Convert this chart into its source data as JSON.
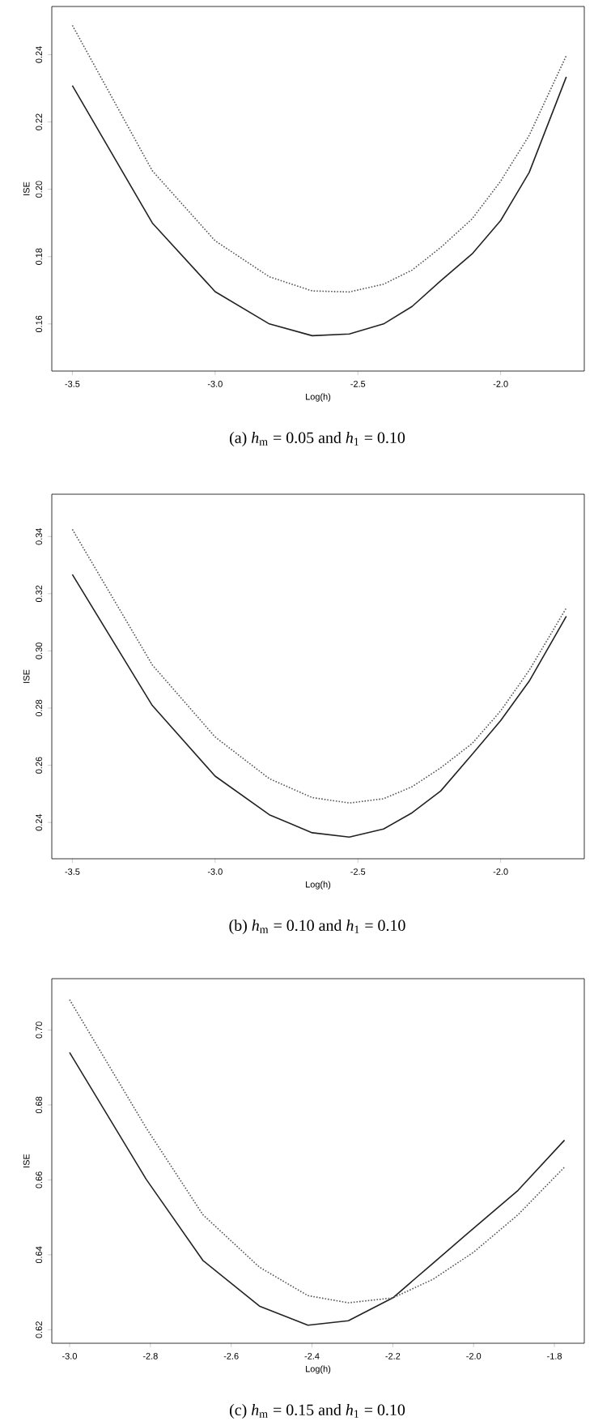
{
  "chart_data": [
    {
      "type": "line",
      "xlabel": "Log(h)",
      "ylabel": "ISE",
      "annotations": [
        "(a) *h*$_{m}$ = 0.05 and *h*$_{1}$ = 0.10"
      ],
      "grid": false,
      "xlim": [
        -3.572,
        -1.707
      ],
      "ylim": [
        0.146,
        0.2543
      ],
      "xticks": [
        {
          "value": -3.5,
          "label": "-3.5"
        },
        {
          "value": -3.0,
          "label": "-3.0"
        },
        {
          "value": -2.5,
          "label": "-2.5"
        },
        {
          "value": -2.0,
          "label": "-2.0"
        }
      ],
      "yticks": [
        {
          "value": 0.16,
          "label": "0.16"
        },
        {
          "value": 0.18,
          "label": "0.18"
        },
        {
          "value": 0.2,
          "label": "0.20"
        },
        {
          "value": 0.22,
          "label": "0.22"
        },
        {
          "value": 0.24,
          "label": "0.24"
        }
      ],
      "x": [
        -3.5,
        -3.22,
        -3.0,
        -2.81,
        -2.66,
        -2.53,
        -2.41,
        -2.31,
        -2.21,
        -2.1,
        -2.0,
        -1.9,
        -1.77
      ],
      "series": [
        {
          "color": "#222222",
          "line_style": "solid",
          "values": [
            0.2308,
            0.19,
            0.1696,
            0.16,
            0.1565,
            0.157,
            0.16,
            0.1652,
            0.1728,
            0.1808,
            0.1907,
            0.205,
            0.2334
          ]
        },
        {
          "color": "#555555",
          "line_style": "dotted",
          "values": [
            0.2487,
            0.2055,
            0.1847,
            0.174,
            0.1698,
            0.1695,
            0.1718,
            0.176,
            0.1827,
            0.1912,
            0.2024,
            0.216,
            0.2397
          ]
        }
      ]
    },
    {
      "type": "line",
      "xlabel": "Log(h)",
      "ylabel": "ISE",
      "annotations": [
        "(b) *h*$_{m}$ = 0.10 and *h*$_{1}$ = 0.10"
      ],
      "grid": false,
      "xlim": [
        -3.572,
        -1.707
      ],
      "ylim": [
        0.2273,
        0.3548
      ],
      "xticks": [
        {
          "value": -3.5,
          "label": "-3.5"
        },
        {
          "value": -3.0,
          "label": "-3.0"
        },
        {
          "value": -2.5,
          "label": "-2.5"
        },
        {
          "value": -2.0,
          "label": "-2.0"
        }
      ],
      "yticks": [
        {
          "value": 0.24,
          "label": "0.24"
        },
        {
          "value": 0.26,
          "label": "0.26"
        },
        {
          "value": 0.28,
          "label": "0.28"
        },
        {
          "value": 0.3,
          "label": "0.30"
        },
        {
          "value": 0.32,
          "label": "0.32"
        },
        {
          "value": 0.34,
          "label": "0.34"
        }
      ],
      "x": [
        -3.5,
        -3.22,
        -3.0,
        -2.81,
        -2.66,
        -2.53,
        -2.41,
        -2.31,
        -2.21,
        -2.1,
        -2.0,
        -1.9,
        -1.77
      ],
      "series": [
        {
          "color": "#222222",
          "line_style": "solid",
          "values": [
            0.3267,
            0.2809,
            0.2562,
            0.2427,
            0.2364,
            0.2349,
            0.2377,
            0.2434,
            0.251,
            0.2638,
            0.2756,
            0.2894,
            0.3121
          ]
        },
        {
          "color": "#555555",
          "line_style": "dotted",
          "values": [
            0.3425,
            0.2951,
            0.2699,
            0.2553,
            0.2487,
            0.2468,
            0.2483,
            0.2525,
            0.2591,
            0.2676,
            0.279,
            0.2932,
            0.315
          ]
        }
      ]
    },
    {
      "type": "line",
      "xlabel": "Log(h)",
      "ylabel": "ISE",
      "annotations": [
        "(c) *h*$_{m}$ = 0.15 and *h*$_{1}$ = 0.10"
      ],
      "grid": false,
      "xlim": [
        -3.044,
        -1.726
      ],
      "ylim": [
        0.6164,
        0.7137
      ],
      "xticks": [
        {
          "value": -3.0,
          "label": "-3.0"
        },
        {
          "value": -2.8,
          "label": "-2.8"
        },
        {
          "value": -2.6,
          "label": "-2.6"
        },
        {
          "value": -2.4,
          "label": "-2.4"
        },
        {
          "value": -2.2,
          "label": "-2.2"
        },
        {
          "value": -2.0,
          "label": "-2.0"
        },
        {
          "value": -1.8,
          "label": "-1.8"
        }
      ],
      "yticks": [
        {
          "value": 0.62,
          "label": "0.62"
        },
        {
          "value": 0.64,
          "label": "0.64"
        },
        {
          "value": 0.66,
          "label": "0.66"
        },
        {
          "value": 0.68,
          "label": "0.68"
        },
        {
          "value": 0.7,
          "label": "0.70"
        }
      ],
      "x": [
        -3.0,
        -2.81,
        -2.67,
        -2.53,
        -2.41,
        -2.31,
        -2.2,
        -2.1,
        -2.0,
        -1.89,
        -1.775
      ],
      "series": [
        {
          "color": "#222222",
          "line_style": "solid",
          "values": [
            0.694,
            0.6601,
            0.6385,
            0.6263,
            0.6212,
            0.6224,
            0.6285,
            0.6378,
            0.6471,
            0.6572,
            0.6706
          ]
        },
        {
          "color": "#555555",
          "line_style": "dotted",
          "values": [
            0.7081,
            0.6738,
            0.6507,
            0.6367,
            0.6291,
            0.6272,
            0.6285,
            0.6335,
            0.6407,
            0.6507,
            0.6634
          ]
        }
      ]
    }
  ]
}
